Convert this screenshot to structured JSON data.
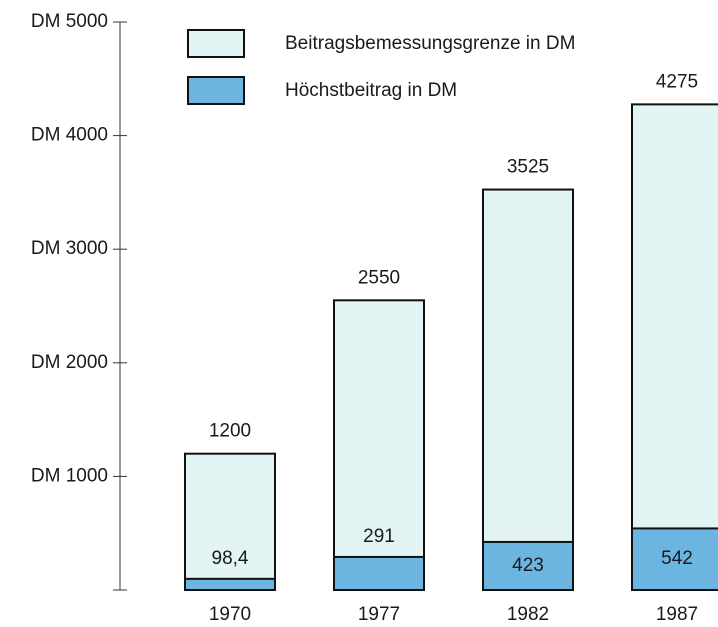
{
  "chart_data": {
    "type": "bar",
    "barmode": "overlay",
    "categories": [
      "1970",
      "1977",
      "1982",
      "1987"
    ],
    "series": [
      {
        "name": "Beitragsbemessungsgrenze in DM",
        "color": "#e2f4f4",
        "values": [
          1200,
          2550,
          3525,
          4275
        ]
      },
      {
        "name": "Höchstbeitrag in DM",
        "color": "#6db5e1",
        "values": [
          98.4,
          291,
          423,
          542
        ],
        "value_labels": [
          "98,4",
          "291",
          "423",
          "542"
        ]
      }
    ],
    "ylim": [
      0,
      5000
    ],
    "yticks": [
      {
        "value": 1000,
        "label": "DM 1000"
      },
      {
        "value": 2000,
        "label": "DM 2000"
      },
      {
        "value": 3000,
        "label": "DM 3000"
      },
      {
        "value": 4000,
        "label": "DM 4000"
      },
      {
        "value": 5000,
        "label": "DM 5000"
      }
    ]
  }
}
